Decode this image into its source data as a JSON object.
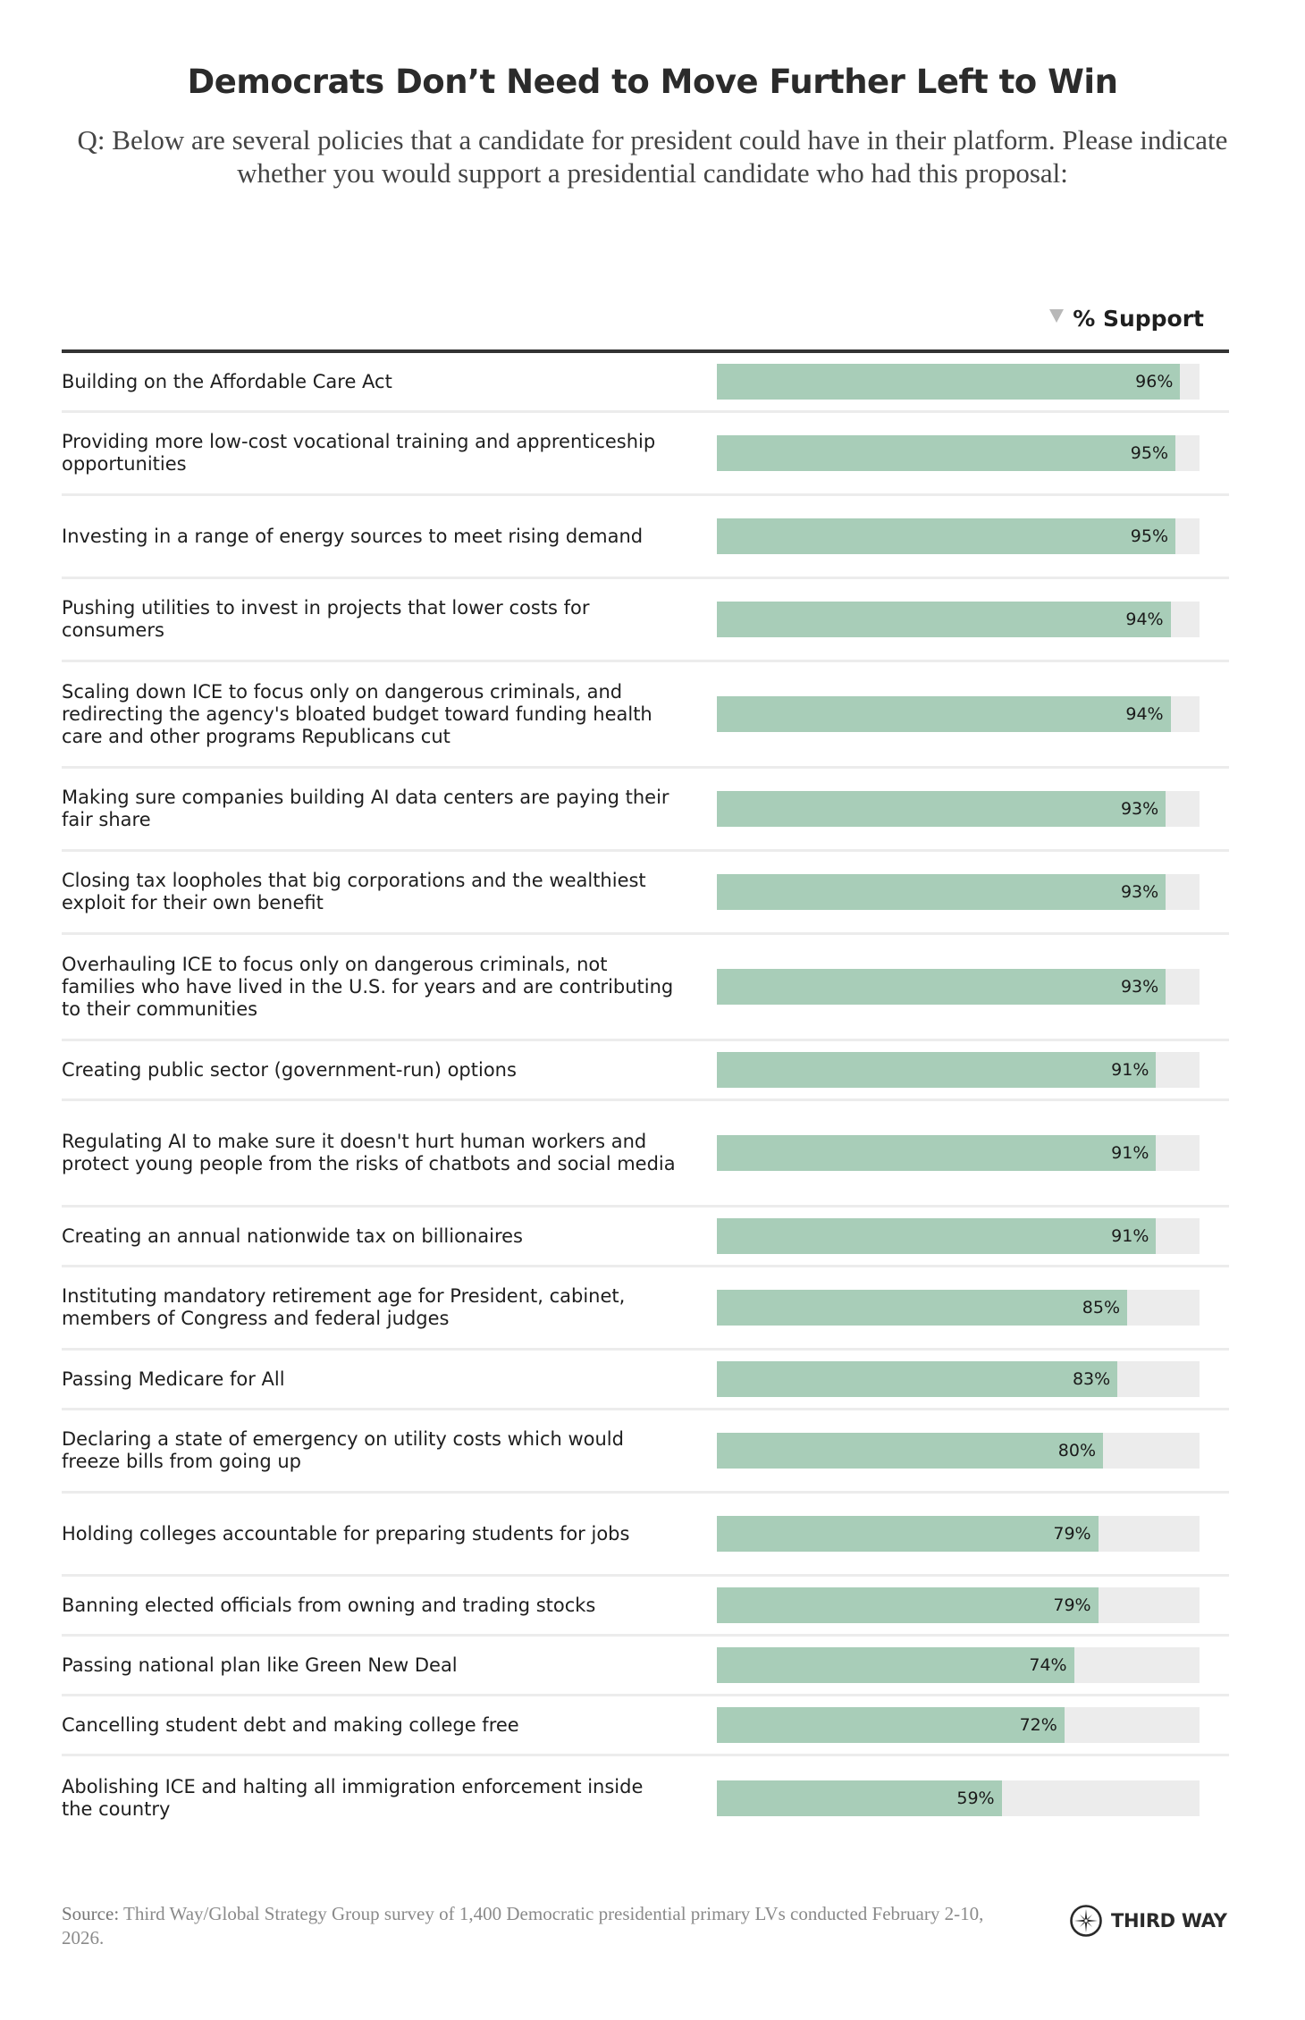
{
  "header": {
    "title": "Democrats Don’t Need to Move Further Left to Win",
    "question": "Q: Below are several policies that a candidate for president could have in their platform. Please indicate whether you would support a presidential candidate who had this proposal:",
    "column_header": "% Support",
    "sort_icon": "triangle-down-sort-icon"
  },
  "colors": {
    "bar_fill": "#a8cdb8",
    "bar_track": "#ececec",
    "header_rule": "#333333",
    "row_divider": "#ececec"
  },
  "chart_data": {
    "type": "bar",
    "orientation": "horizontal",
    "title": "Democrats Don’t Need to Move Further Left to Win",
    "xlabel": "% Support",
    "ylabel": "",
    "xlim": [
      0,
      100
    ],
    "grid": false,
    "sorted": "descending",
    "categories": [
      "Building on the Affordable Care Act",
      "Providing more low-cost vocational training and apprenticeship opportunities",
      "Investing in a range of energy sources to meet rising demand",
      "Pushing utilities to invest in projects that lower costs for consumers",
      "Scaling down ICE to focus only on dangerous criminals, and redirecting the agency's bloated budget toward funding health care and other programs Republicans cut",
      "Making sure companies building AI data centers are paying their fair share",
      "Closing tax loopholes that big corporations and the wealthiest exploit for their own benefit",
      "Overhauling ICE to focus only on dangerous criminals, not families who have lived in the U.S. for years and are contributing to their communities",
      "Creating public sector (government-run) options",
      "Regulating AI to make sure it doesn't hurt human workers and protect young people from the risks of chatbots and social media",
      "Creating an annual nationwide tax on billionaires",
      "Instituting mandatory retirement age for President, cabinet, members of Congress and federal judges",
      "Passing Medicare for All",
      "Declaring a state of emergency on utility costs which would freeze bills from going up",
      "Holding colleges accountable for preparing students for jobs",
      "Banning elected officials from owning and trading stocks",
      "Passing national plan like Green New Deal",
      "Cancelling student debt and making college free",
      "Abolishing ICE and halting all immigration enforcement inside the country"
    ],
    "values": [
      96,
      95,
      95,
      94,
      94,
      93,
      93,
      93,
      91,
      91,
      91,
      85,
      83,
      80,
      79,
      79,
      74,
      72,
      59
    ],
    "value_labels": [
      "96%",
      "95%",
      "95%",
      "94%",
      "94%",
      "93%",
      "93%",
      "93%",
      "91%",
      "91%",
      "91%",
      "85%",
      "83%",
      "80%",
      "79%",
      "79%",
      "74%",
      "72%",
      "59%"
    ]
  },
  "footer": {
    "source_label": "Source:",
    "source_text": " Third Way/Global Strategy Group survey of 1,400 Democratic presidential primary LVs conducted February 2-10, 2026.",
    "logo_text": "THIRD WAY",
    "logo_icon": "compass-star-icon"
  }
}
